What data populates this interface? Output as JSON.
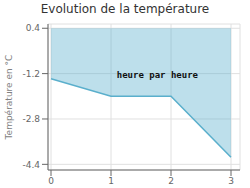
{
  "chart_data": {
    "type": "line",
    "title": "Evolution de la température",
    "ylabel": "Température en °C",
    "x": [
      0,
      1,
      2,
      3
    ],
    "values": [
      -1.38,
      -2.0,
      -2.0,
      -4.15
    ],
    "fill_to": 0.4,
    "color": "#5aafcc",
    "xlim": [
      -0.05,
      3.15
    ],
    "ylim": [
      -4.6,
      0.55
    ],
    "xticks": [
      0,
      1,
      2,
      3
    ],
    "yticks": [
      0.4,
      -1.2,
      -2.8,
      -4.4
    ],
    "grid": true,
    "annotations": [
      {
        "text": "heure par heure",
        "x": 2.45,
        "y": -1.25
      }
    ]
  }
}
